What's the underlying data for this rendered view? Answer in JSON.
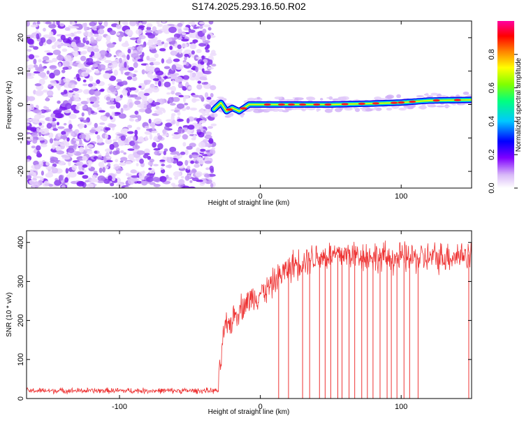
{
  "title": "S174.2025.293.16.50.R02",
  "chart_data": [
    {
      "type": "heatmap",
      "xlabel": "Height of straight line (km)",
      "ylabel": "Frequency (Hz)",
      "xlim": [
        -166,
        150
      ],
      "ylim": [
        -25,
        25
      ],
      "xticks": [
        -100,
        0,
        100
      ],
      "yticks": [
        -20,
        -10,
        0,
        10,
        20
      ],
      "noise_region_x": [
        -166,
        -33
      ],
      "signal_ridge": [
        {
          "x": -33,
          "y": -1.5
        },
        {
          "x": -28,
          "y": 0.5
        },
        {
          "x": -24,
          "y": -2
        },
        {
          "x": -20,
          "y": -1
        },
        {
          "x": -15,
          "y": -2
        },
        {
          "x": -8,
          "y": 0
        },
        {
          "x": 0,
          "y": 0
        },
        {
          "x": 20,
          "y": 0
        },
        {
          "x": 50,
          "y": 0
        },
        {
          "x": 80,
          "y": 0.3
        },
        {
          "x": 100,
          "y": 0.6
        },
        {
          "x": 120,
          "y": 1.2
        },
        {
          "x": 150,
          "y": 1.4
        }
      ],
      "colorbar": {
        "label": "Normalized spectral amplitude",
        "range": [
          0,
          1
        ],
        "ticks": [
          "0.0",
          "0.2",
          "0.4",
          "0.6",
          "0.8"
        ],
        "colors": [
          "#ffffff",
          "#d8b8f8",
          "#8000ff",
          "#0000ff",
          "#00c8ff",
          "#00ff80",
          "#80ff00",
          "#ffff00",
          "#ff8000",
          "#ff0000",
          "#ff00a0"
        ]
      }
    },
    {
      "type": "line",
      "xlabel": "Height of straight line (km)",
      "ylabel": "SNR (10 * v/v)",
      "xlim": [
        -166,
        150
      ],
      "ylim": [
        0,
        430
      ],
      "xticks": [
        -100,
        0,
        100
      ],
      "yticks": [
        0,
        100,
        200,
        300,
        400
      ],
      "series_color": "#ee3333",
      "profile": [
        {
          "x": -166,
          "y": 20
        },
        {
          "x": -30,
          "y": 20
        },
        {
          "x": -26,
          "y": 170
        },
        {
          "x": -15,
          "y": 230
        },
        {
          "x": -5,
          "y": 260
        },
        {
          "x": 5,
          "y": 280
        },
        {
          "x": 15,
          "y": 320
        },
        {
          "x": 25,
          "y": 345
        },
        {
          "x": 35,
          "y": 360
        },
        {
          "x": 60,
          "y": 370
        },
        {
          "x": 90,
          "y": 360
        },
        {
          "x": 120,
          "y": 360
        },
        {
          "x": 150,
          "y": 370
        }
      ],
      "dropout_x": [
        13,
        20,
        30,
        35,
        42,
        46,
        50,
        55,
        58,
        63,
        67,
        72,
        76,
        80,
        85,
        90,
        93,
        97,
        102,
        106,
        112,
        148
      ]
    }
  ]
}
